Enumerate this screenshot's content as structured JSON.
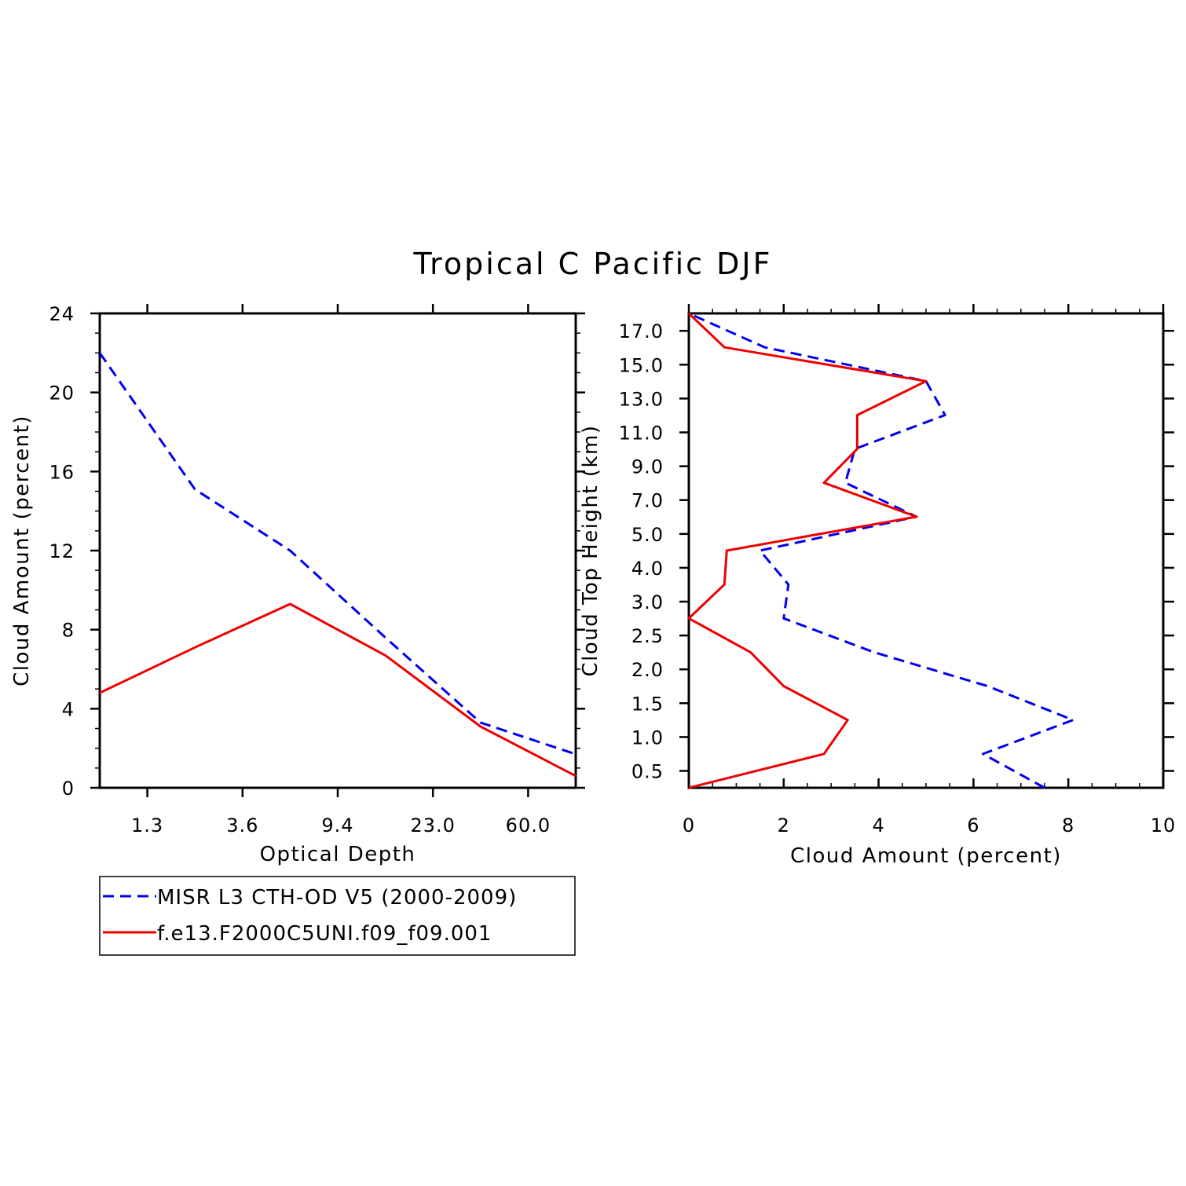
{
  "title": "Tropical C Pacific DJF",
  "colors": {
    "obs": "#0000ee",
    "model": "#ee0000",
    "axis": "#000000"
  },
  "legend": {
    "placement": "below-left",
    "entries": [
      {
        "label": "MISR L3 CTH-OD V5 (2000-2009)",
        "color": "#0000ee",
        "style": "dashed"
      },
      {
        "label": "f.e13.F2000C5UNI.f09_f09.001",
        "color": "#ee0000",
        "style": "solid"
      }
    ]
  },
  "chart_data": [
    {
      "type": "line",
      "xlabel": "Optical Depth",
      "ylabel": "Cloud Amount (percent)",
      "categories": [
        "0.3–1.3",
        "1.3–3.6",
        "3.6–9.4",
        "9.4–23.0",
        "23.0–60.0",
        "60.0+"
      ],
      "x_tick_labels": [
        "1.3",
        "3.6",
        "9.4",
        "23.0",
        "60.0"
      ],
      "ylim": [
        0,
        24
      ],
      "y_ticks": [
        0,
        4,
        8,
        12,
        16,
        20,
        24
      ],
      "grid": false,
      "series": [
        {
          "name": "MISR L3 CTH-OD V5 (2000-2009)",
          "values": [
            22.0,
            15.1,
            12.0,
            7.6,
            3.3,
            1.7
          ]
        },
        {
          "name": "f.e13.F2000C5UNI.f09_f09.001",
          "values": [
            4.8,
            7.1,
            9.3,
            6.7,
            3.1,
            0.6
          ]
        }
      ]
    },
    {
      "type": "line",
      "orientation": "horizontal",
      "xlabel": "Cloud Amount (percent)",
      "ylabel": "Cloud Top Height (km)",
      "xlim": [
        0,
        10
      ],
      "x_ticks": [
        0,
        2,
        4,
        6,
        8,
        10
      ],
      "y_tick_labels": [
        "0.5",
        "1.0",
        "1.5",
        "2.0",
        "2.5",
        "3.0",
        "4.0",
        "5.0",
        "7.0",
        "9.0",
        "11.0",
        "13.0",
        "15.0",
        "17.0"
      ],
      "levels": [
        "0–0.5",
        "0.5–1.0",
        "1.0–1.5",
        "1.5–2.0",
        "2.0–2.5",
        "2.5–3.0",
        "3.0–4.0",
        "4.0–5.0",
        "5.0–7.0",
        "7.0–9.0",
        "9.0–11.0",
        "11.0–13.0",
        "13.0–15.0",
        "15.0–17.0",
        "17.0+"
      ],
      "grid": false,
      "series": [
        {
          "name": "MISR L3 CTH-OD V5 (2000-2009)",
          "values": [
            7.5,
            6.2,
            8.1,
            6.3,
            3.9,
            2.0,
            2.1,
            1.5,
            4.8,
            3.3,
            3.5,
            5.4,
            5.0,
            1.6,
            0.0
          ]
        },
        {
          "name": "f.e13.F2000C5UNI.f09_f09.001",
          "values": [
            0.0,
            2.85,
            3.35,
            2.0,
            1.3,
            0.0,
            0.75,
            0.8,
            4.8,
            2.85,
            3.55,
            3.55,
            5.0,
            0.75,
            0.0
          ]
        }
      ]
    }
  ]
}
